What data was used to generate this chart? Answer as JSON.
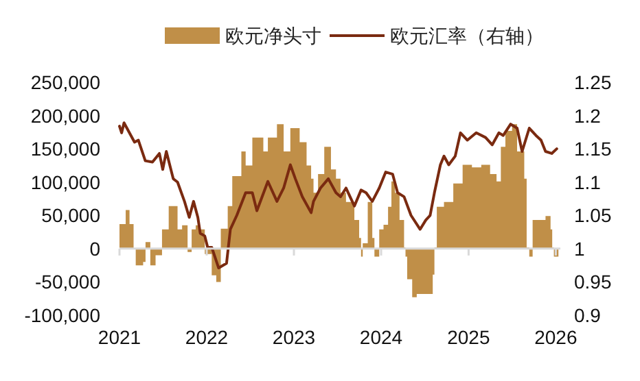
{
  "chart_data": {
    "type": "area",
    "legend": "top",
    "xlim": [
      "2021-01-01",
      "2026-01-20"
    ],
    "xticks": [
      "2021",
      "2022",
      "2023",
      "2024",
      "2025",
      "2026"
    ],
    "ylim": [
      -100000,
      250000
    ],
    "yticks": [
      {
        "value": -100000,
        "label": "-100,000"
      },
      {
        "value": -50000,
        "label": "-50,000"
      },
      0,
      {
        "value": 50000,
        "label": "50,000"
      },
      {
        "value": 100000,
        "label": "100,000"
      },
      {
        "value": 150000,
        "label": "150,000"
      },
      {
        "value": 200000,
        "label": "200,000"
      },
      {
        "value": 250000,
        "label": "250,000"
      }
    ],
    "y2lim": [
      0.9,
      1.25
    ],
    "y2ticks": [
      0.9,
      0.95,
      1,
      1.05,
      1.1,
      1.15,
      1.2,
      1.25
    ],
    "series": [
      {
        "name": "欧元净头寸",
        "color": "#c08f48",
        "x": [
          "2021-01-01",
          "2021-01-27",
          "2021-02-05",
          "2021-02-12",
          "2021-03-01",
          "2021-03-10",
          "2021-04-10",
          "2021-04-20",
          "2021-05-10",
          "2021-06-01",
          "2021-06-28",
          "2021-07-26",
          "2021-08-23",
          "2021-09-01",
          "2021-09-20",
          "2021-10-13",
          "2021-10-30",
          "2021-11-16",
          "2021-12-05",
          "2021-12-24",
          "2022-01-22",
          "2022-02-10",
          "2022-03-01",
          "2022-03-30",
          "2022-04-18",
          "2022-05-26",
          "2022-06-13",
          "2022-07-11",
          "2022-08-26",
          "2022-09-14",
          "2022-10-22",
          "2022-11-19",
          "2022-12-17",
          "2023-01-25",
          "2023-02-23",
          "2023-03-14",
          "2023-03-24",
          "2023-04-12",
          "2023-05-08",
          "2023-06-05",
          "2023-06-26",
          "2023-07-15",
          "2023-08-07",
          "2023-09-11",
          "2023-10-01",
          "2023-10-09",
          "2023-10-16",
          "2023-11-06",
          "2023-11-25",
          "2023-12-04",
          "2023-12-24",
          "2024-01-11",
          "2024-01-30",
          "2024-02-13",
          "2024-02-28",
          "2024-03-18",
          "2024-04-06",
          "2024-04-12",
          "2024-04-19",
          "2024-05-10",
          "2024-05-29",
          "2024-07-06",
          "2024-08-04",
          "2024-08-11",
          "2024-08-21",
          "2024-09-20",
          "2024-10-29",
          "2024-12-07",
          "2025-01-15",
          "2025-02-23",
          "2025-04-01",
          "2025-04-28",
          "2025-05-16",
          "2025-06-04",
          "2025-07-02",
          "2025-07-23",
          "2025-08-22",
          "2025-09-01",
          "2025-09-12",
          "2025-09-26",
          "2025-10-31",
          "2025-11-19",
          "2025-12-10",
          "2025-12-17",
          "2025-12-24",
          "2026-01-12"
        ],
        "values": [
          37000,
          58000,
          58000,
          37000,
          0,
          -25000,
          -20000,
          10000,
          -25000,
          -10000,
          29000,
          64000,
          64000,
          29000,
          35000,
          -5000,
          29000,
          35000,
          29000,
          -8000,
          -40000,
          -50000,
          30000,
          64000,
          109000,
          146000,
          125000,
          167000,
          146000,
          167000,
          187000,
          146000,
          181000,
          160000,
          125000,
          105000,
          84000,
          112000,
          153000,
          119000,
          105000,
          84000,
          70000,
          43000,
          16000,
          -12000,
          8000,
          70000,
          16000,
          -12000,
          29000,
          36000,
          63000,
          101000,
          84000,
          43000,
          2000,
          -12000,
          -46000,
          -73000,
          -68000,
          -68000,
          -39000,
          2000,
          63000,
          70000,
          98000,
          126000,
          122000,
          126000,
          112000,
          101000,
          153000,
          177000,
          187000,
          146000,
          105000,
          2000,
          -12000,
          43000,
          43000,
          49000,
          29000,
          2000,
          -12000,
          -68000
        ]
      },
      {
        "name": "欧元汇率（右轴）",
        "type": "line",
        "axis": "y2",
        "color": "#7a2a10",
        "x": [
          "2021-01-01",
          "2021-01-10",
          "2021-01-20",
          "2021-03-05",
          "2021-03-21",
          "2021-04-19",
          "2021-05-19",
          "2021-06-17",
          "2021-07-01",
          "2021-07-16",
          "2021-08-14",
          "2021-09-01",
          "2021-09-30",
          "2021-10-20",
          "2021-11-07",
          "2021-11-25",
          "2021-12-05",
          "2021-12-24",
          "2022-01-05",
          "2022-01-22",
          "2022-02-20",
          "2022-03-25",
          "2022-04-10",
          "2022-05-07",
          "2022-06-13",
          "2022-07-11",
          "2022-07-30",
          "2022-09-14",
          "2022-10-22",
          "2022-11-19",
          "2022-12-17",
          "2023-01-07",
          "2023-02-05",
          "2023-03-14",
          "2023-03-24",
          "2023-04-22",
          "2023-05-25",
          "2023-06-26",
          "2023-07-15",
          "2023-08-07",
          "2023-09-11",
          "2023-10-09",
          "2023-10-30",
          "2023-11-25",
          "2023-12-24",
          "2024-01-20",
          "2024-02-18",
          "2024-03-10",
          "2024-04-06",
          "2024-05-05",
          "2024-06-12",
          "2024-07-06",
          "2024-07-24",
          "2024-08-11",
          "2024-09-05",
          "2024-09-20",
          "2024-10-10",
          "2024-11-06",
          "2024-11-28",
          "2024-12-27",
          "2025-02-02",
          "2025-03-13",
          "2025-04-10",
          "2025-05-08",
          "2025-05-26",
          "2025-06-26",
          "2025-07-23",
          "2025-08-13",
          "2025-09-12",
          "2025-10-10",
          "2025-10-31",
          "2025-11-19",
          "2025-12-15",
          "2026-01-05"
        ],
        "values": [
          1.184,
          1.174,
          1.189,
          1.16,
          1.163,
          1.132,
          1.13,
          1.143,
          1.119,
          1.146,
          1.105,
          1.1,
          1.071,
          1.047,
          1.071,
          1.047,
          1.023,
          1.019,
          1.002,
          1.002,
          0.971,
          0.978,
          1.029,
          1.05,
          1.084,
          1.084,
          1.057,
          1.101,
          1.071,
          1.091,
          1.126,
          1.105,
          1.078,
          1.054,
          1.071,
          1.091,
          1.105,
          1.084,
          1.078,
          1.091,
          1.064,
          1.088,
          1.084,
          1.071,
          1.091,
          1.115,
          1.112,
          1.084,
          1.078,
          1.05,
          1.029,
          1.043,
          1.05,
          1.084,
          1.126,
          1.139,
          1.126,
          1.139,
          1.174,
          1.163,
          1.174,
          1.167,
          1.156,
          1.174,
          1.17,
          1.187,
          1.181,
          1.146,
          1.181,
          1.17,
          1.163,
          1.146,
          1.143,
          1.15
        ]
      }
    ]
  }
}
